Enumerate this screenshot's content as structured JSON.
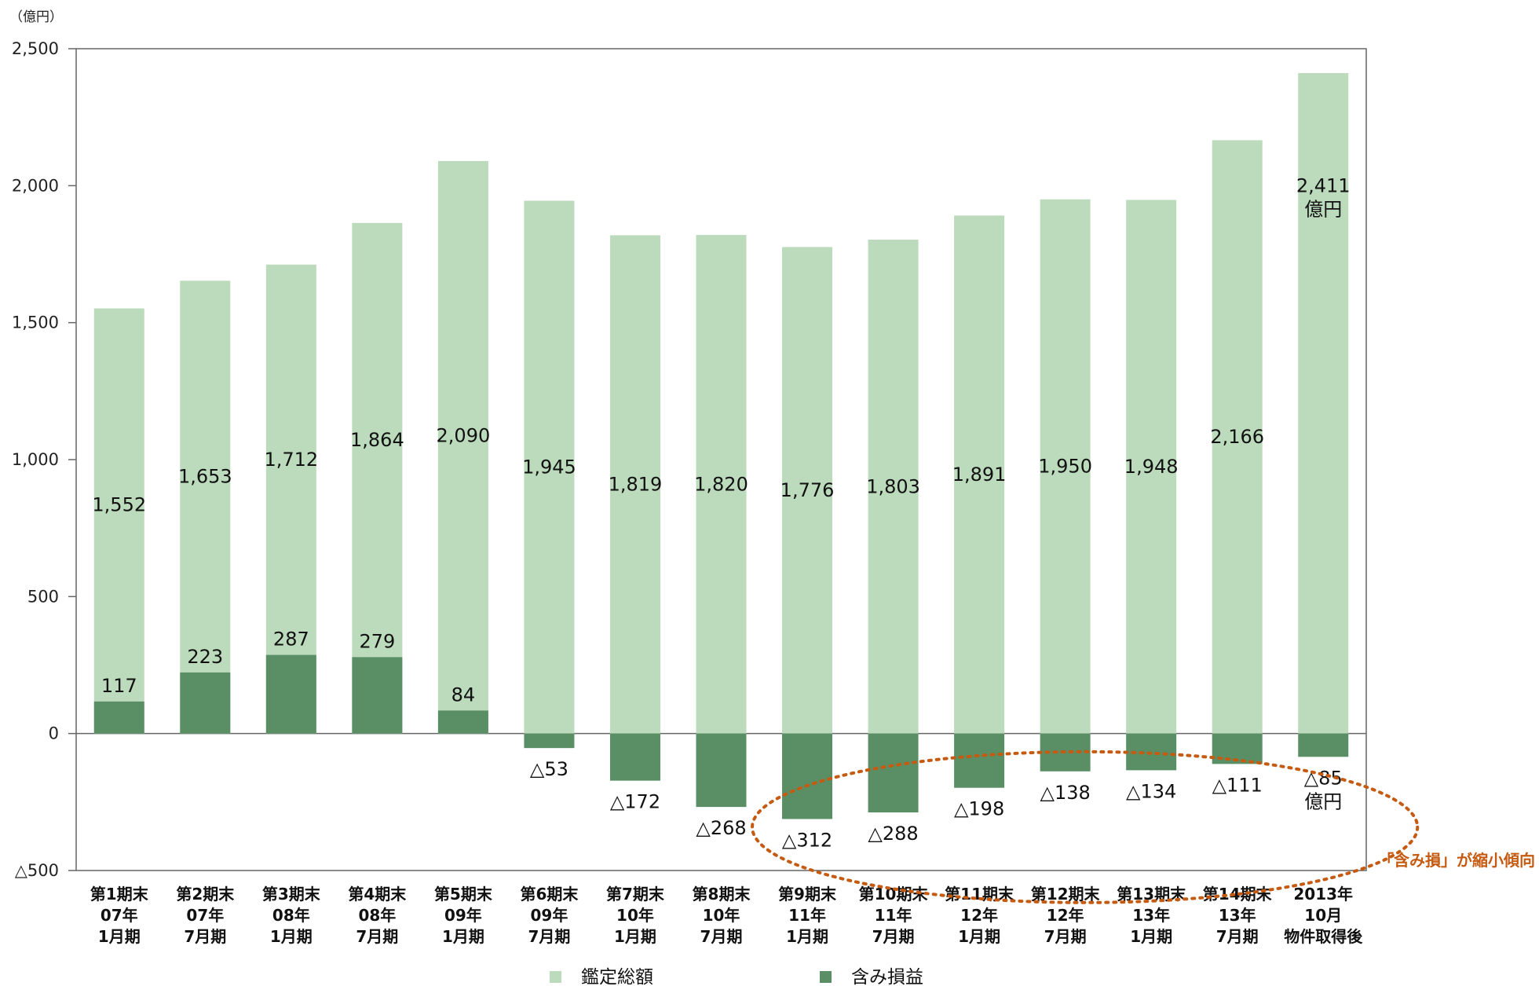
{
  "chart_data": {
    "type": "bar",
    "unit_label": "（億円）",
    "ylim": [
      -500,
      2500
    ],
    "y_ticks": [
      {
        "value": 2500,
        "label": "2,500"
      },
      {
        "value": 2000,
        "label": "2,000"
      },
      {
        "value": 1500,
        "label": "1,500"
      },
      {
        "value": 1000,
        "label": "1,000"
      },
      {
        "value": 500,
        "label": "500"
      },
      {
        "value": 0,
        "label": "0"
      },
      {
        "value": -500,
        "label": "△500"
      }
    ],
    "categories": [
      [
        "第1期末",
        "07年",
        "1月期"
      ],
      [
        "第2期末",
        "07年",
        "7月期"
      ],
      [
        "第3期末",
        "08年",
        "1月期"
      ],
      [
        "第4期末",
        "08年",
        "7月期"
      ],
      [
        "第5期末",
        "09年",
        "1月期"
      ],
      [
        "第6期末",
        "09年",
        "7月期"
      ],
      [
        "第7期末",
        "10年",
        "1月期"
      ],
      [
        "第8期末",
        "10年",
        "7月期"
      ],
      [
        "第9期末",
        "11年",
        "1月期"
      ],
      [
        "第10期末",
        "11年",
        "7月期"
      ],
      [
        "第11期末",
        "12年",
        "1月期"
      ],
      [
        "第12期末",
        "12年",
        "7月期"
      ],
      [
        "第13期末",
        "13年",
        "1月期"
      ],
      [
        "第14期末",
        "13年",
        "7月期"
      ],
      [
        "2013年",
        "10月",
        "物件取得後"
      ]
    ],
    "series": [
      {
        "name": "鑑定総額",
        "color": "#bcdabc",
        "values": [
          1552,
          1653,
          1712,
          1864,
          2090,
          1945,
          1819,
          1820,
          1776,
          1803,
          1891,
          1950,
          1948,
          2166,
          2411
        ],
        "labels": [
          "1,552",
          "1,653",
          "1,712",
          "1,864",
          "2,090",
          "1,945",
          "1,819",
          "1,820",
          "1,776",
          "1,803",
          "1,891",
          "1,950",
          "1,948",
          "2,166",
          "2,411"
        ]
      },
      {
        "name": "含み損益",
        "color": "#5a8f66",
        "values": [
          117,
          223,
          287,
          279,
          84,
          -53,
          -172,
          -268,
          -312,
          -288,
          -198,
          -138,
          -134,
          -111,
          -85
        ],
        "labels": [
          "117",
          "223",
          "287",
          "279",
          "84",
          "△53",
          "△172",
          "△268",
          "△312",
          "△288",
          "△198",
          "△138",
          "△134",
          "△111",
          "△85"
        ]
      }
    ],
    "last_bar_unit": "億円",
    "annotation": "「含み損」が縮小傾向",
    "annotation_color": "#c55a11",
    "legend_position": "bottom"
  }
}
